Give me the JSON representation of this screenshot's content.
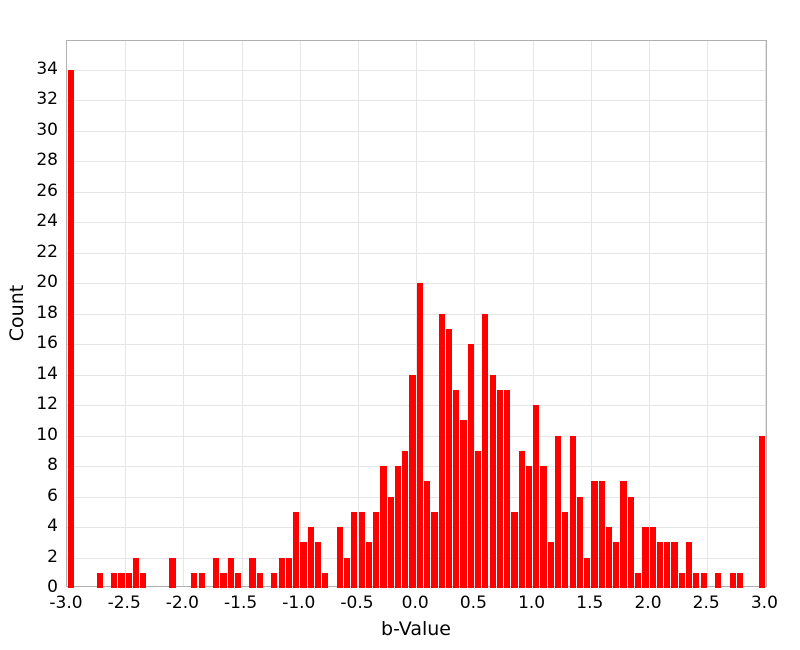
{
  "chart_data": {
    "type": "bar",
    "subtype": "histogram",
    "title": "",
    "xlabel": "b-Value",
    "ylabel": "Count",
    "xlim": [
      -3.0,
      3.022
    ],
    "ylim": [
      0,
      35.87
    ],
    "grid": true,
    "legend": false,
    "bin_width": 0.0625,
    "colors": {
      "bar": "#FF0000",
      "grid": "#E6E6E6",
      "frame": "#B0B0B0",
      "text": "#000000",
      "background": "#FFFFFF"
    },
    "x_ticks": {
      "values": [
        -3.0,
        -2.5,
        -2.0,
        -1.5,
        -1.0,
        -0.5,
        0.0,
        0.5,
        1.0,
        1.5,
        2.0,
        2.5,
        3.0
      ],
      "labels": [
        "-3.0",
        "-2.5",
        "-2.0",
        "-1.5",
        "-1.0",
        "-0.5",
        "0.0",
        "0.5",
        "1.0",
        "1.5",
        "2.0",
        "2.5",
        "3.0"
      ]
    },
    "y_ticks": {
      "values": [
        0,
        2,
        4,
        6,
        8,
        10,
        12,
        14,
        16,
        18,
        20,
        22,
        24,
        26,
        28,
        30,
        32,
        34
      ],
      "labels": [
        "0",
        "2",
        "4",
        "6",
        "8",
        "10",
        "12",
        "14",
        "16",
        "18",
        "20",
        "22",
        "24",
        "26",
        "28",
        "30",
        "32",
        "34"
      ]
    },
    "bars": [
      {
        "x": -2.9688,
        "count": 34
      },
      {
        "x": -2.7188,
        "count": 1
      },
      {
        "x": -2.5938,
        "count": 1
      },
      {
        "x": -2.5313,
        "count": 1
      },
      {
        "x": -2.4688,
        "count": 1
      },
      {
        "x": -2.4063,
        "count": 2
      },
      {
        "x": -2.3438,
        "count": 1
      },
      {
        "x": -2.0938,
        "count": 2
      },
      {
        "x": -1.9063,
        "count": 1
      },
      {
        "x": -1.8438,
        "count": 1
      },
      {
        "x": -1.7188,
        "count": 2
      },
      {
        "x": -1.6563,
        "count": 1
      },
      {
        "x": -1.5938,
        "count": 2
      },
      {
        "x": -1.5313,
        "count": 1
      },
      {
        "x": -1.4063,
        "count": 2
      },
      {
        "x": -1.3438,
        "count": 1
      },
      {
        "x": -1.2188,
        "count": 1
      },
      {
        "x": -1.1563,
        "count": 2
      },
      {
        "x": -1.0938,
        "count": 2
      },
      {
        "x": -1.0313,
        "count": 5
      },
      {
        "x": -0.9688,
        "count": 3
      },
      {
        "x": -0.9063,
        "count": 4
      },
      {
        "x": -0.8438,
        "count": 3
      },
      {
        "x": -0.7813,
        "count": 1
      },
      {
        "x": -0.6563,
        "count": 4
      },
      {
        "x": -0.5938,
        "count": 2
      },
      {
        "x": -0.5313,
        "count": 5
      },
      {
        "x": -0.4688,
        "count": 5
      },
      {
        "x": -0.4063,
        "count": 3
      },
      {
        "x": -0.3438,
        "count": 5
      },
      {
        "x": -0.2813,
        "count": 8
      },
      {
        "x": -0.2188,
        "count": 6
      },
      {
        "x": -0.1563,
        "count": 8
      },
      {
        "x": -0.0938,
        "count": 9
      },
      {
        "x": -0.0313,
        "count": 14
      },
      {
        "x": 0.0313,
        "count": 20
      },
      {
        "x": 0.0938,
        "count": 7
      },
      {
        "x": 0.1563,
        "count": 5
      },
      {
        "x": 0.2188,
        "count": 18
      },
      {
        "x": 0.2813,
        "count": 17
      },
      {
        "x": 0.3438,
        "count": 13
      },
      {
        "x": 0.4063,
        "count": 11
      },
      {
        "x": 0.4688,
        "count": 16
      },
      {
        "x": 0.5313,
        "count": 9
      },
      {
        "x": 0.5938,
        "count": 18
      },
      {
        "x": 0.6563,
        "count": 14
      },
      {
        "x": 0.7188,
        "count": 13
      },
      {
        "x": 0.7813,
        "count": 13
      },
      {
        "x": 0.8438,
        "count": 5
      },
      {
        "x": 0.9063,
        "count": 9
      },
      {
        "x": 0.9688,
        "count": 8
      },
      {
        "x": 1.0313,
        "count": 12
      },
      {
        "x": 1.0938,
        "count": 8
      },
      {
        "x": 1.1563,
        "count": 3
      },
      {
        "x": 1.2188,
        "count": 10
      },
      {
        "x": 1.2813,
        "count": 5
      },
      {
        "x": 1.3438,
        "count": 10
      },
      {
        "x": 1.4063,
        "count": 6
      },
      {
        "x": 1.4688,
        "count": 2
      },
      {
        "x": 1.5313,
        "count": 7
      },
      {
        "x": 1.5938,
        "count": 7
      },
      {
        "x": 1.6563,
        "count": 4
      },
      {
        "x": 1.7188,
        "count": 3
      },
      {
        "x": 1.7813,
        "count": 7
      },
      {
        "x": 1.8438,
        "count": 6
      },
      {
        "x": 1.9063,
        "count": 1
      },
      {
        "x": 1.9688,
        "count": 4
      },
      {
        "x": 2.0313,
        "count": 4
      },
      {
        "x": 2.0938,
        "count": 3
      },
      {
        "x": 2.1563,
        "count": 3
      },
      {
        "x": 2.2188,
        "count": 3
      },
      {
        "x": 2.2813,
        "count": 1
      },
      {
        "x": 2.3438,
        "count": 3
      },
      {
        "x": 2.4063,
        "count": 1
      },
      {
        "x": 2.4688,
        "count": 1
      },
      {
        "x": 2.5938,
        "count": 1
      },
      {
        "x": 2.7188,
        "count": 1
      },
      {
        "x": 2.7813,
        "count": 1
      },
      {
        "x": 2.9688,
        "count": 10
      }
    ]
  }
}
